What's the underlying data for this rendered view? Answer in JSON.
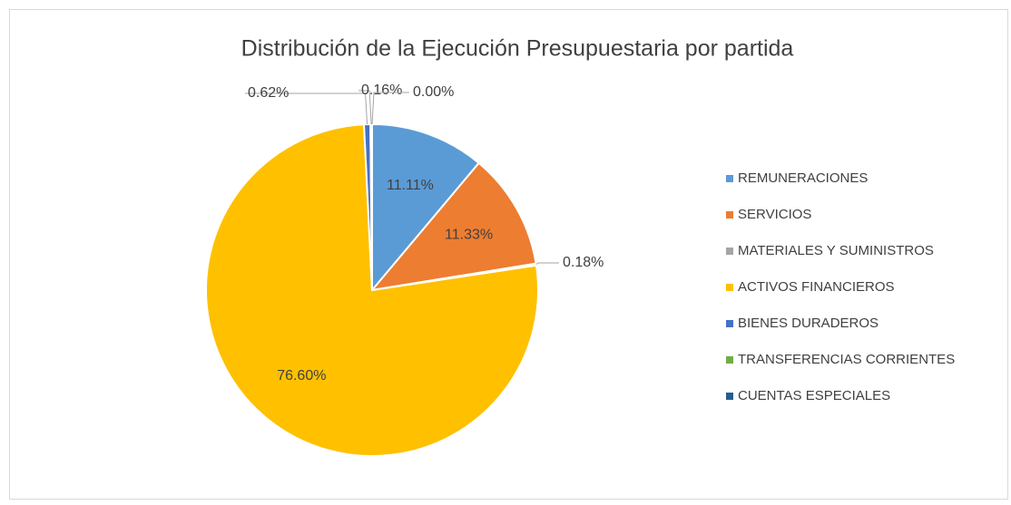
{
  "chart_data": {
    "type": "pie",
    "title": "Distribución de la Ejecución Presupuestaria por partida",
    "categories": [
      "REMUNERACIONES",
      "SERVICIOS",
      "MATERIALES Y SUMINISTROS",
      "ACTIVOS FINANCIEROS",
      "BIENES DURADEROS",
      "TRANSFERENCIAS CORRIENTES",
      "CUENTAS ESPECIALES"
    ],
    "values": [
      11.11,
      11.33,
      0.18,
      76.6,
      0.62,
      0.16,
      0.0
    ],
    "value_labels": [
      "11.11%",
      "11.33%",
      "0.18%",
      "76.60%",
      "0.62%",
      "0.16%",
      "0.00%"
    ],
    "colors": [
      "#5b9bd5",
      "#ed7d31",
      "#a5a5a5",
      "#ffc000",
      "#4472c4",
      "#70ad47",
      "#255e91"
    ],
    "legend": "right"
  }
}
